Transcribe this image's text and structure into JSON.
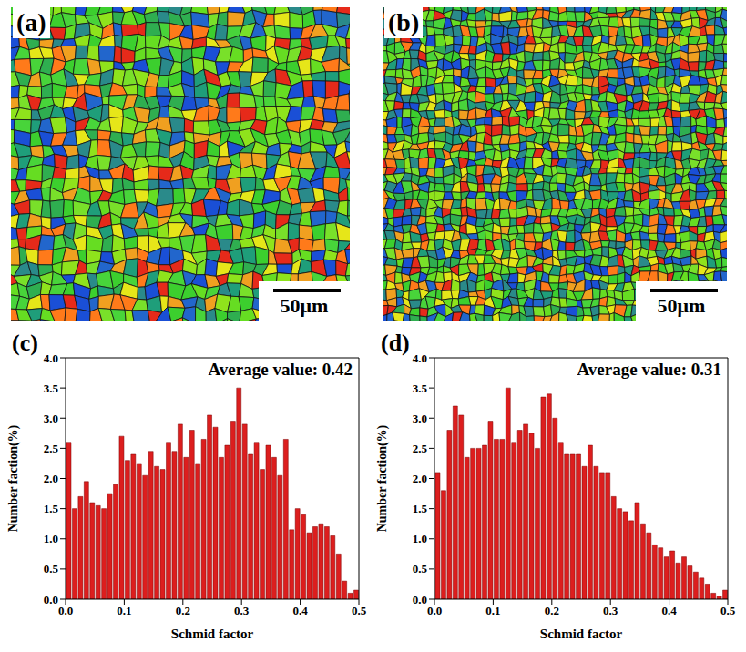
{
  "images": [
    {
      "label": "(a)",
      "scale_bar": "50μm"
    },
    {
      "label": "(b)",
      "scale_bar": "50μm"
    }
  ],
  "chart_data": [
    {
      "type": "bar",
      "label": "(c)",
      "annotation": "Average value: 0.42",
      "x_label": "Schmid factor",
      "y_label": "Number faction(%)",
      "color": "#dc1e1e",
      "bins": [
        0,
        0.01,
        0.02,
        0.03,
        0.04,
        0.05,
        0.06,
        0.07,
        0.08,
        0.09,
        0.1,
        0.11,
        0.12,
        0.13,
        0.14,
        0.15,
        0.16,
        0.17,
        0.18,
        0.19,
        0.2,
        0.21,
        0.22,
        0.23,
        0.24,
        0.25,
        0.26,
        0.27,
        0.28,
        0.29,
        0.3,
        0.31,
        0.32,
        0.33,
        0.34,
        0.35,
        0.36,
        0.37,
        0.38,
        0.39,
        0.4,
        0.41,
        0.42,
        0.43,
        0.44,
        0.45,
        0.46,
        0.47,
        0.48,
        0.49,
        0.5
      ],
      "values": [
        2.6,
        1.5,
        1.7,
        1.95,
        1.6,
        1.55,
        1.5,
        1.75,
        1.9,
        2.7,
        2.3,
        2.4,
        2.25,
        2.05,
        2.45,
        2.2,
        2.15,
        2.6,
        2.45,
        2.9,
        2.35,
        2.8,
        2.25,
        2.65,
        3.05,
        2.85,
        2.35,
        2.55,
        2.95,
        3.5,
        2.9,
        2.4,
        2.6,
        2.15,
        2.55,
        2.35,
        2.05,
        2.65,
        1.15,
        1.5,
        1.4,
        1.1,
        1.2,
        1.25,
        1.2,
        1.05,
        0.75,
        0.3,
        0.1,
        0.15
      ],
      "xlim": [
        0,
        0.5
      ],
      "xticks": [
        {
          "value": 0,
          "label": "0.0"
        },
        0.1,
        0.2,
        0.3,
        0.4,
        0.5
      ],
      "ylim": [
        0,
        4
      ],
      "yticks": [
        {
          "value": 0,
          "label": "0.0"
        },
        0.5,
        {
          "value": 1,
          "label": "1.0"
        },
        1.5,
        {
          "value": 2,
          "label": "2.0"
        },
        2.5,
        {
          "value": 3,
          "label": "3.0"
        },
        3.5,
        {
          "value": 4,
          "label": "4.0"
        }
      ],
      "grid": false
    },
    {
      "type": "bar",
      "label": "(d)",
      "annotation": "Average value: 0.31",
      "x_label": "Schmid factor",
      "y_label": "Number faction(%)",
      "color": "#dc1e1e",
      "bins": [
        0,
        0.01,
        0.02,
        0.03,
        0.04,
        0.05,
        0.06,
        0.07,
        0.08,
        0.09,
        0.1,
        0.11,
        0.12,
        0.13,
        0.14,
        0.15,
        0.16,
        0.17,
        0.18,
        0.19,
        0.2,
        0.21,
        0.22,
        0.23,
        0.24,
        0.25,
        0.26,
        0.27,
        0.28,
        0.29,
        0.3,
        0.31,
        0.32,
        0.33,
        0.34,
        0.35,
        0.36,
        0.37,
        0.38,
        0.39,
        0.4,
        0.41,
        0.42,
        0.43,
        0.44,
        0.45,
        0.46,
        0.47,
        0.48,
        0.49,
        0.5
      ],
      "values": [
        2.1,
        1.8,
        2.8,
        3.2,
        3.05,
        2.35,
        2.5,
        2.5,
        2.55,
        2.95,
        2.65,
        2.65,
        3.5,
        2.6,
        2.8,
        2.9,
        2.75,
        2.5,
        3.35,
        3.4,
        3.0,
        2.6,
        2.4,
        2.4,
        2.4,
        2.2,
        2.55,
        2.2,
        2.1,
        2.1,
        1.7,
        1.5,
        1.45,
        1.3,
        1.6,
        1.25,
        1.1,
        0.9,
        0.85,
        0.7,
        0.8,
        0.6,
        0.7,
        0.55,
        0.45,
        0.35,
        0.25,
        0.1,
        0.05,
        0.15
      ],
      "xlim": [
        0,
        0.5
      ],
      "xticks": [
        {
          "value": 0,
          "label": "0.0"
        },
        0.1,
        0.2,
        0.3,
        0.4,
        0.5
      ],
      "ylim": [
        0,
        4
      ],
      "yticks": [
        {
          "value": 0,
          "label": "0.0"
        },
        0.5,
        {
          "value": 1,
          "label": "1.0"
        },
        1.5,
        {
          "value": 2,
          "label": "2.0"
        },
        2.5,
        {
          "value": 3,
          "label": "3.0"
        },
        3.5,
        {
          "value": 4,
          "label": "4.0"
        }
      ],
      "grid": false
    }
  ]
}
